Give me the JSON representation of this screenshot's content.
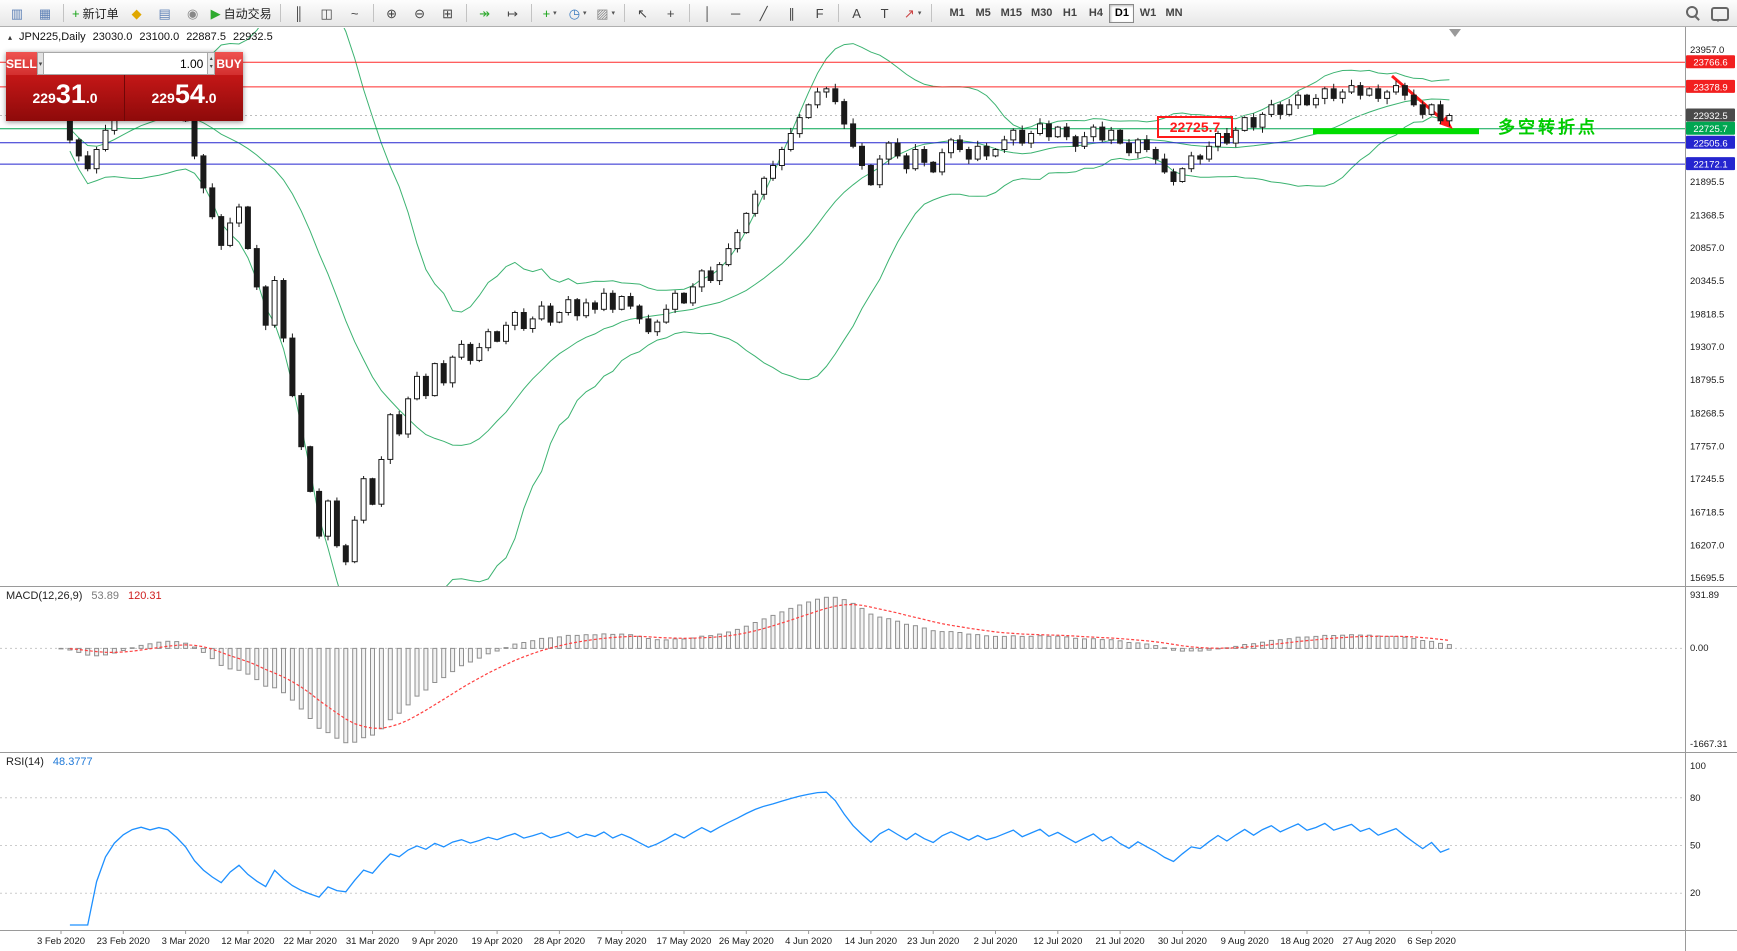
{
  "toolbar": {
    "items": [
      {
        "name": "new-window-icon",
        "glyph": "▥",
        "color": "#5b7fb5"
      },
      {
        "name": "profile-icon",
        "glyph": "▦",
        "color": "#5b7fb5"
      },
      {
        "type": "sep"
      },
      {
        "name": "new-order-button",
        "glyph": "+",
        "color": "#17a317",
        "label": "新订单"
      },
      {
        "name": "market-watch-icon",
        "glyph": "◆",
        "color": "#e0a800"
      },
      {
        "name": "data-window-icon",
        "glyph": "▤",
        "color": "#5b7fb5"
      },
      {
        "name": "navigator-icon",
        "glyph": "◉",
        "color": "#888888"
      },
      {
        "name": "algo-trading-button",
        "glyph": "▶",
        "color": "#2faa2f",
        "label": "自动交易"
      },
      {
        "type": "sep"
      },
      {
        "name": "bar-chart-icon",
        "glyph": "║",
        "color": "#444444"
      },
      {
        "name": "candle-chart-icon",
        "glyph": "◫",
        "color": "#444444"
      },
      {
        "name": "line-chart-icon",
        "glyph": "~",
        "color": "#444444"
      },
      {
        "type": "sep"
      },
      {
        "name": "zoom-in-icon",
        "glyph": "⊕",
        "color": "#444444"
      },
      {
        "name": "zoom-out-icon",
        "glyph": "⊖",
        "color": "#444444"
      },
      {
        "name": "tile-windows-icon",
        "glyph": "⊞",
        "color": "#444444"
      },
      {
        "type": "sep"
      },
      {
        "name": "auto-scroll-icon",
        "glyph": "↠",
        "color": "#2faa2f"
      },
      {
        "name": "chart-shift-icon",
        "glyph": "↦",
        "color": "#444444"
      },
      {
        "type": "sep"
      },
      {
        "name": "add-indicator-icon",
        "glyph": "+",
        "color": "#17a317",
        "caret": true
      },
      {
        "name": "periods-icon",
        "glyph": "◷",
        "color": "#3a7abf",
        "caret": true
      },
      {
        "name": "templates-icon",
        "glyph": "▨",
        "color": "#888888",
        "caret": true
      },
      {
        "type": "sep"
      },
      {
        "name": "cursor-icon",
        "glyph": "↖",
        "color": "#444444"
      },
      {
        "name": "crosshair-icon",
        "glyph": "+",
        "color": "#444444"
      },
      {
        "type": "sep"
      },
      {
        "name": "vertical-line-icon",
        "glyph": "│",
        "color": "#444444"
      },
      {
        "name": "horizontal-line-icon",
        "glyph": "─",
        "color": "#444444"
      },
      {
        "name": "trendline-icon",
        "glyph": "╱",
        "color": "#444444"
      },
      {
        "name": "channel-icon",
        "glyph": "∥",
        "color": "#444444"
      },
      {
        "name": "fibonacci-icon",
        "glyph": "F",
        "color": "#444444"
      },
      {
        "type": "sep"
      },
      {
        "name": "text-icon",
        "glyph": "A",
        "color": "#444444"
      },
      {
        "name": "label-icon",
        "glyph": "T",
        "color": "#444444"
      },
      {
        "name": "arrow-object-icon",
        "glyph": "↗",
        "color": "#cc4444",
        "caret": true
      },
      {
        "type": "sep"
      }
    ],
    "timeframes": [
      "M1",
      "M5",
      "M15",
      "M30",
      "H1",
      "H4",
      "D1",
      "W1",
      "MN"
    ],
    "active_timeframe": "D1",
    "right_icons": [
      {
        "name": "search-icon"
      },
      {
        "name": "chat-icon"
      }
    ]
  },
  "symbol_header": {
    "icon": "▴",
    "name": "JPN225,Daily",
    "open": "23030.0",
    "high": "23100.0",
    "low": "22887.5",
    "close": "22932.5"
  },
  "trade_panel": {
    "sell_label": "SELL",
    "buy_label": "BUY",
    "volume": "1.00",
    "sell_price": "22931.0",
    "buy_price": "22954.0"
  },
  "macd_panel": {
    "name": "MACD(12,26,9)",
    "value_main": "53.89",
    "value_signal": "120.31",
    "axis_labels": [
      "931.89",
      "0.00",
      "-1667.31"
    ]
  },
  "rsi_panel": {
    "name": "RSI(14)",
    "value": "48.3777",
    "axis_labels": [
      100,
      80,
      50,
      20
    ]
  },
  "colors": {
    "line_red": "#ff2a2a",
    "line_green": "#00a651",
    "line_blue": "#2525cf",
    "bid_gray": "#bdbdbd",
    "zone_green": "#00dd00",
    "note_green": "#00cc00",
    "band_green": "#3cb371",
    "candle_ink": "#1a1a1a",
    "macd_hist": "#8f8f8f",
    "macd_signal": "#ff4040",
    "rsi_blue": "#1e90ff",
    "tag_dark": "#4a4a4a",
    "marker_gray": "#9a9a9a"
  },
  "chart_data": {
    "type": "candlestick",
    "symbol": "JPN225",
    "timeframe": "Daily",
    "ohlc_current": {
      "open": 23030.0,
      "high": 23100.0,
      "low": 22887.5,
      "close": 22932.5
    },
    "closes": [
      22900,
      22550,
      22300,
      22100,
      22400,
      22700,
      22950,
      23150,
      23300,
      23380,
      23320,
      23400,
      23350,
      23150,
      22850,
      22300,
      21800,
      21350,
      20900,
      21250,
      21500,
      20850,
      20250,
      19650,
      20350,
      19450,
      18550,
      17750,
      17050,
      16350,
      16900,
      16200,
      15950,
      16600,
      17250,
      16850,
      17550,
      18250,
      17950,
      18500,
      18850,
      18550,
      19050,
      18750,
      19150,
      19350,
      19100,
      19300,
      19550,
      19400,
      19650,
      19850,
      19600,
      19750,
      19950,
      19700,
      19850,
      20050,
      19800,
      20000,
      19900,
      20150,
      19900,
      20100,
      19950,
      19750,
      19550,
      19700,
      19900,
      20150,
      20000,
      20250,
      20500,
      20350,
      20600,
      20850,
      21100,
      21400,
      21700,
      21950,
      22150,
      22400,
      22650,
      22900,
      23100,
      23300,
      23350,
      23150,
      22800,
      22450,
      22150,
      21850,
      22250,
      22500,
      22300,
      22100,
      22400,
      22200,
      22050,
      22350,
      22550,
      22400,
      22250,
      22450,
      22300,
      22400,
      22550,
      22700,
      22500,
      22650,
      22800,
      22600,
      22750,
      22600,
      22450,
      22600,
      22750,
      22550,
      22700,
      22500,
      22350,
      22550,
      22400,
      22250,
      22050,
      21900,
      22100,
      22300,
      22250,
      22450,
      22650,
      22500,
      22700,
      22900,
      22750,
      22950,
      23100,
      22950,
      23100,
      23250,
      23100,
      23200,
      23350,
      23200,
      23300,
      23400,
      23250,
      23350,
      23200,
      23300,
      23400,
      23250,
      23100,
      22950,
      23100,
      22850,
      22932.5
    ],
    "date_labels": [
      "3 Feb 2020",
      "23 Feb 2020",
      "3 Mar 2020",
      "12 Mar 2020",
      "22 Mar 2020",
      "31 Mar 2020",
      "9 Apr 2020",
      "19 Apr 2020",
      "28 Apr 2020",
      "7 May 2020",
      "17 May 2020",
      "26 May 2020",
      "4 Jun 2020",
      "14 Jun 2020",
      "23 Jun 2020",
      "2 Jul 2020",
      "12 Jul 2020",
      "21 Jul 2020",
      "30 Jul 2020",
      "9 Aug 2020",
      "18 Aug 2020",
      "27 Aug 2020",
      "6 Sep 2020"
    ],
    "price_axis": {
      "plain": [
        {
          "label": "23957.0",
          "price": 23957.0
        },
        {
          "label": "21895.5",
          "price": 21895.5
        },
        {
          "label": "21368.5",
          "price": 21368.5
        },
        {
          "label": "20857.0",
          "price": 20857.0
        },
        {
          "label": "20345.5",
          "price": 20345.5
        },
        {
          "label": "19818.5",
          "price": 19818.5
        },
        {
          "label": "19307.0",
          "price": 19307.0
        },
        {
          "label": "18795.5",
          "price": 18795.5
        },
        {
          "label": "18268.5",
          "price": 18268.5
        },
        {
          "label": "17757.0",
          "price": 17757.0
        },
        {
          "label": "17245.5",
          "price": 17245.5
        },
        {
          "label": "16718.5",
          "price": 16718.5
        },
        {
          "label": "16207.0",
          "price": 16207.0
        },
        {
          "label": "15695.5",
          "price": 15695.5
        }
      ],
      "tagged": [
        {
          "label": "23766.6",
          "price": 23766.6,
          "color": "#f21f1f"
        },
        {
          "label": "23378.9",
          "price": 23378.9,
          "color": "#f21f1f"
        },
        {
          "label": "22932.5",
          "price": 22932.5,
          "color": "#4a4a4a"
        },
        {
          "label": "22725.7",
          "price": 22725.7,
          "color": "#00a651"
        },
        {
          "label": "22505.6",
          "price": 22505.6,
          "color": "#2525cf"
        },
        {
          "label": "22172.1",
          "price": 22172.1,
          "color": "#2525cf"
        }
      ]
    },
    "h_lines": [
      {
        "price": 23766.6,
        "color": "#ff2a2a",
        "style": "solid"
      },
      {
        "price": 23378.9,
        "color": "#ff2a2a",
        "style": "solid"
      },
      {
        "price": 22932.5,
        "color": "#bdbdbd",
        "style": "dotted"
      },
      {
        "price": 22725.7,
        "color": "#00a651",
        "style": "solid"
      },
      {
        "price": 22505.6,
        "color": "#2525cf",
        "style": "solid"
      },
      {
        "price": 22172.1,
        "color": "#2525cf",
        "style": "solid"
      }
    ],
    "annotations": {
      "price_tag": {
        "text": "22725.7",
        "color": "#ff1a1a"
      },
      "note": {
        "text": "多空转折点",
        "color": "#00cc00"
      },
      "support_zone": {
        "price": 22725.7,
        "color": "#00dd00"
      },
      "arrow": {
        "color": "#ff1a1a"
      }
    },
    "indicators": {
      "bollinger": {
        "period": 20,
        "deviation": 2,
        "color": "#3cb371"
      },
      "macd": {
        "params": "12,26,9",
        "hist_color": "#8f8f8f",
        "signal_color": "#ff4040",
        "axis": [
          931.89,
          0.0,
          -1667.31
        ]
      },
      "rsi": {
        "period": 14,
        "color": "#1e90ff",
        "levels": [
          80,
          50,
          20
        ]
      }
    }
  }
}
